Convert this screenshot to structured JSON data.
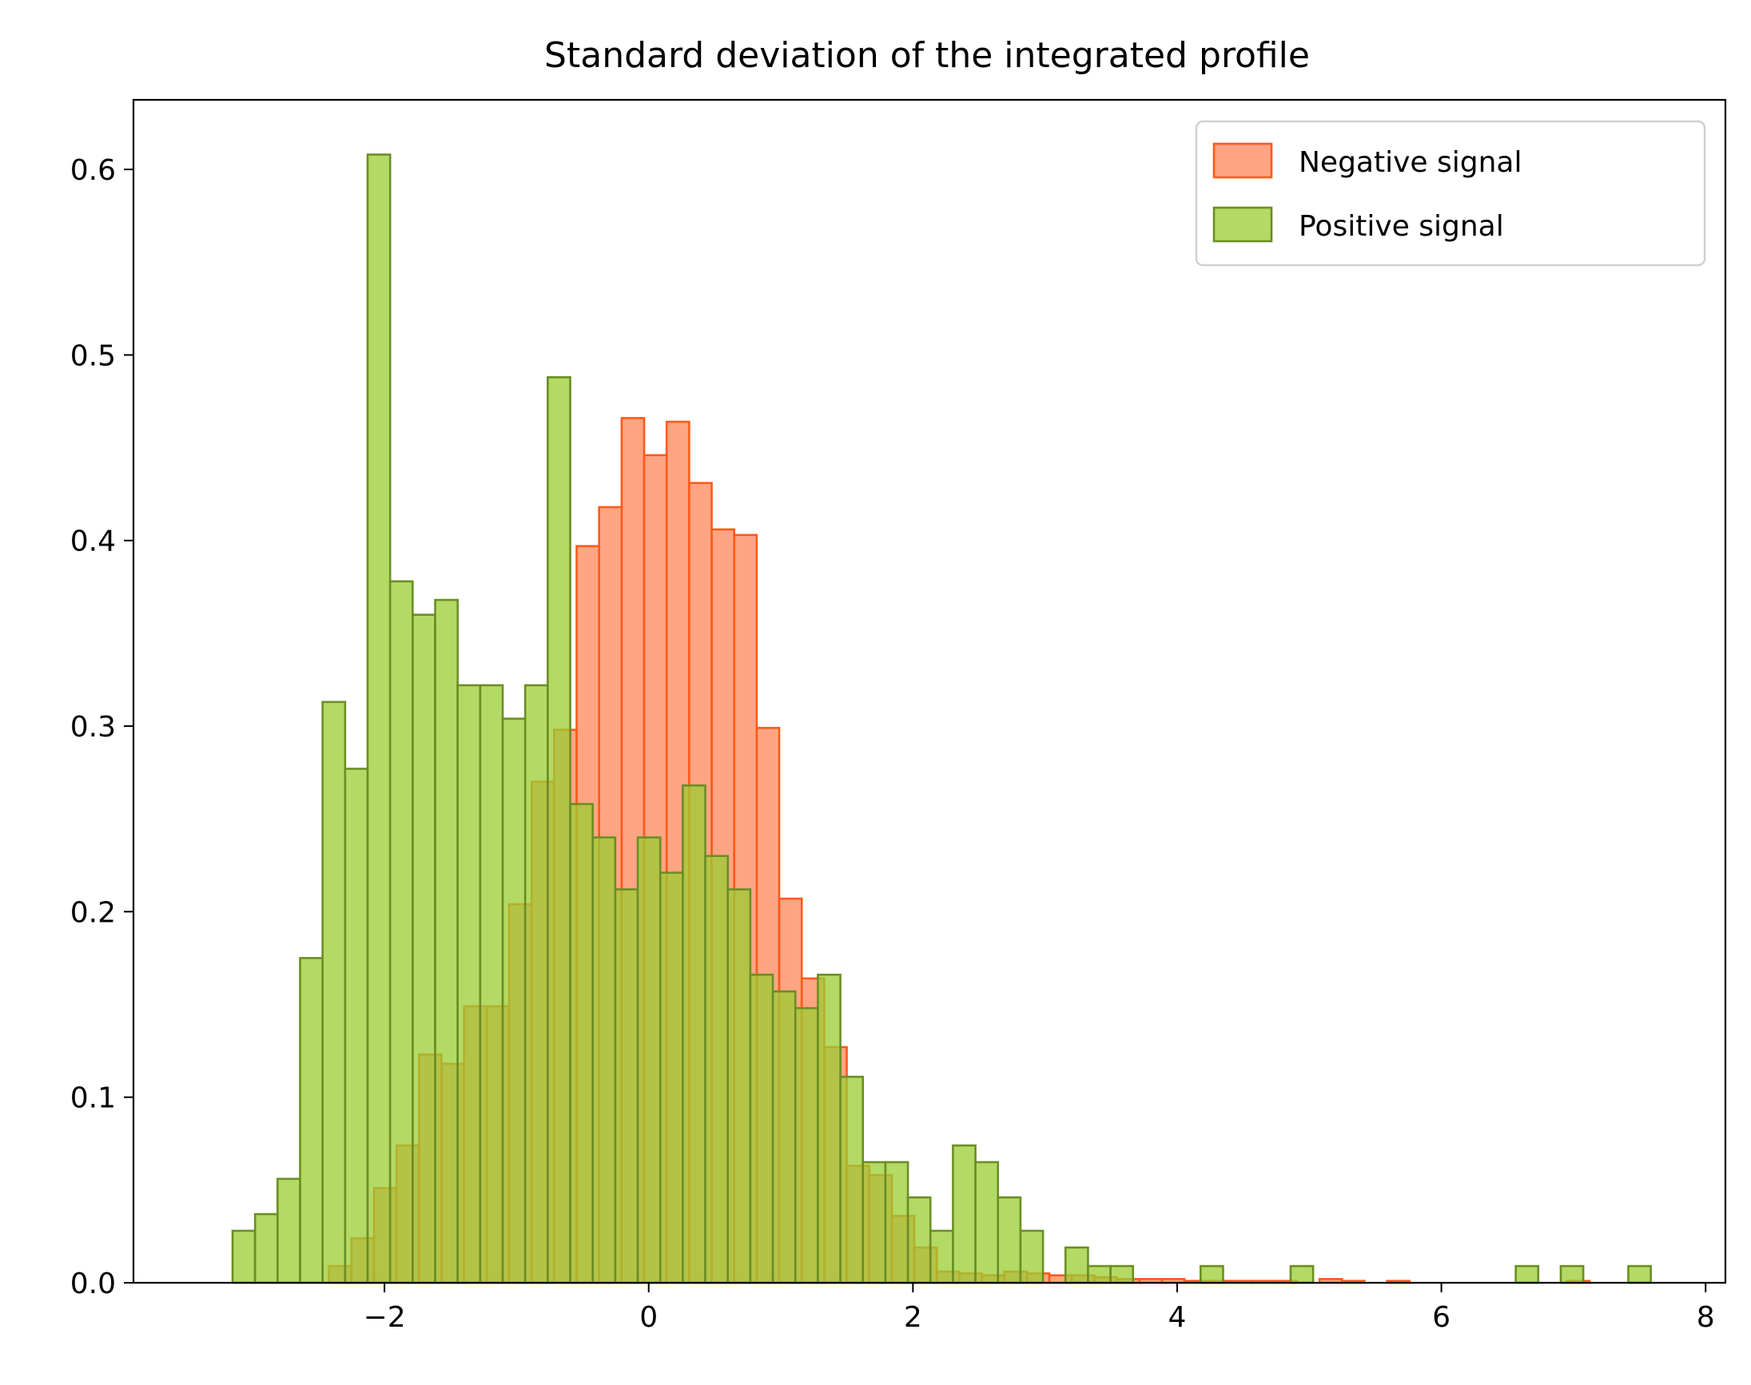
{
  "chart_data": {
    "type": "histogram",
    "title": "Standard deviation of the integrated profile",
    "xlabel": "",
    "ylabel": "",
    "xlim": [
      -3.9,
      8.15
    ],
    "ylim": [
      0,
      0.6375
    ],
    "xticks": [
      -2,
      0,
      2,
      4,
      6,
      8
    ],
    "xtick_labels": [
      "−2",
      "0",
      "2",
      "4",
      "6",
      "8"
    ],
    "yticks": [
      0.0,
      0.1,
      0.2,
      0.3,
      0.4,
      0.5,
      0.6
    ],
    "ytick_labels": [
      "0.0",
      "0.1",
      "0.2",
      "0.3",
      "0.4",
      "0.5",
      "0.6"
    ],
    "grid": false,
    "legend": {
      "position": "top-right"
    },
    "series": [
      {
        "name": "Negative signal",
        "fill": "#ff7f50",
        "fill_opacity": 0.7,
        "edge": "#ff5a1a",
        "bin_width": 0.1704,
        "bin_edges_start": -2.42,
        "values": [
          0.009,
          0.024,
          0.051,
          0.074,
          0.123,
          0.118,
          0.149,
          0.149,
          0.204,
          0.27,
          0.298,
          0.397,
          0.418,
          0.466,
          0.446,
          0.464,
          0.431,
          0.406,
          0.403,
          0.299,
          0.207,
          0.164,
          0.127,
          0.063,
          0.058,
          0.036,
          0.019,
          0.006,
          0.005,
          0.004,
          0.006,
          0.005,
          0.004,
          0.004,
          0.003,
          0.002,
          0.002,
          0.002,
          0.001,
          0.001,
          0.001,
          0.001,
          0.001,
          0.0,
          0.002,
          0.001,
          0.0,
          0.001,
          0.0,
          0.0,
          0.0,
          0.0,
          0.0,
          0.0,
          0.0,
          0.001
        ]
      },
      {
        "name": "Positive signal",
        "fill": "#9acd32",
        "fill_opacity": 0.75,
        "edge": "#6b8e23",
        "bin_width": 0.1704,
        "bin_edges_start": -3.15,
        "values": [
          0.028,
          0.037,
          0.056,
          0.175,
          0.313,
          0.277,
          0.608,
          0.378,
          0.36,
          0.368,
          0.322,
          0.322,
          0.304,
          0.322,
          0.488,
          0.258,
          0.24,
          0.212,
          0.24,
          0.221,
          0.268,
          0.23,
          0.212,
          0.166,
          0.157,
          0.148,
          0.166,
          0.111,
          0.065,
          0.065,
          0.046,
          0.028,
          0.074,
          0.065,
          0.046,
          0.028,
          0.0,
          0.019,
          0.009,
          0.009,
          0.0,
          0.0,
          0.0,
          0.009,
          0.0,
          0.0,
          0.0,
          0.009,
          0.0,
          0.0,
          0.0,
          0.0,
          0.0,
          0.0,
          0.0,
          0.0,
          0.0,
          0.009,
          0.0,
          0.009,
          0.0,
          0.0,
          0.009
        ]
      }
    ]
  }
}
